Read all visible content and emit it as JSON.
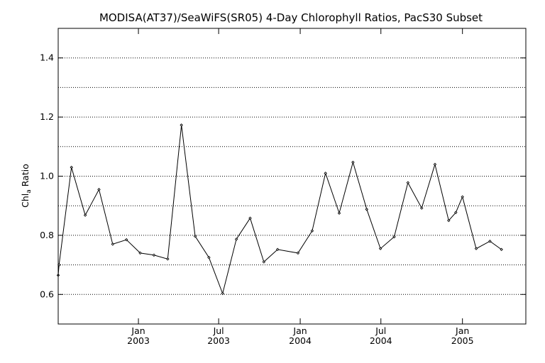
{
  "chart_data": {
    "type": "line",
    "title": "MODISA(AT37)/SeaWiFS(SR05) 4-Day Chlorophyll Ratios, PacS30 Subset",
    "ylabel_main": "Chl",
    "ylabel_sub": "a",
    "ylabel_rest": " Ratio",
    "xlabel": "",
    "ylim": [
      0.5,
      1.5
    ],
    "xlim": [
      "2002-07-04",
      "2005-05-24"
    ],
    "yticks": [
      0.6,
      0.8,
      1.0,
      1.2,
      1.4
    ],
    "ytick_labels": [
      "0.6",
      "0.8",
      "1.0",
      "1.2",
      "1.4"
    ],
    "ygrid": [
      0.6,
      0.7,
      0.8,
      0.9,
      1.0,
      1.1,
      1.2,
      1.3,
      1.4
    ],
    "xticks": [
      {
        "date": "2003-01-01",
        "line1": "Jan",
        "line2": "2003"
      },
      {
        "date": "2003-07-01",
        "line1": "Jul",
        "line2": "2003"
      },
      {
        "date": "2004-01-01",
        "line1": "Jan",
        "line2": "2004"
      },
      {
        "date": "2004-07-01",
        "line1": "Jul",
        "line2": "2004"
      },
      {
        "date": "2005-01-01",
        "line1": "Jan",
        "line2": "2005"
      }
    ],
    "x": [
      "2002-07-04",
      "2002-07-06",
      "2002-08-03",
      "2002-09-03",
      "2002-10-04",
      "2002-11-04",
      "2002-12-05",
      "2003-01-05",
      "2003-02-05",
      "2003-03-08",
      "2003-04-08",
      "2003-05-09",
      "2003-06-09",
      "2003-07-10",
      "2003-08-10",
      "2003-09-10",
      "2003-10-11",
      "2003-11-11",
      "2003-12-27",
      "2004-01-28",
      "2004-02-27",
      "2004-03-29",
      "2004-04-29",
      "2004-05-30",
      "2004-06-30",
      "2004-07-31",
      "2004-08-31",
      "2004-10-01",
      "2004-10-31",
      "2004-12-01",
      "2004-12-17",
      "2005-01-01",
      "2005-02-01",
      "2005-03-04",
      "2005-03-30"
    ],
    "values": [
      0.665,
      0.7,
      1.03,
      0.868,
      0.955,
      0.77,
      0.785,
      0.74,
      0.733,
      0.72,
      1.173,
      0.797,
      0.725,
      0.603,
      0.787,
      0.858,
      0.71,
      0.752,
      0.74,
      0.815,
      1.01,
      0.875,
      1.047,
      0.888,
      0.755,
      0.795,
      0.978,
      0.892,
      1.04,
      0.85,
      0.877,
      0.93,
      0.755,
      0.78,
      0.752
    ]
  }
}
